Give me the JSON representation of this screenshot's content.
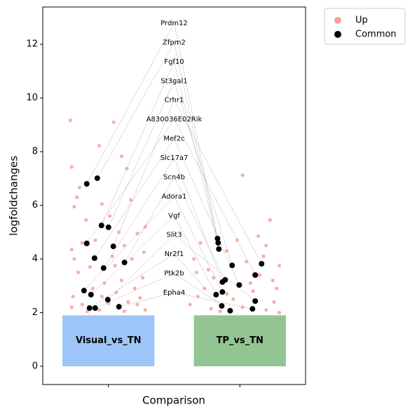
{
  "chart_data": {
    "type": "scatter",
    "xlabel": "Comparison",
    "ylabel": "logfoldchanges",
    "categories": [
      "Visual_vs_TN",
      "TP_vs_TN"
    ],
    "category_bars": {
      "values": [
        1.9,
        1.9
      ],
      "colors": [
        "#9ec5f7",
        "#93c592"
      ]
    },
    "xlim": [
      -0.5,
      1.5
    ],
    "xticks": [
      0,
      1
    ],
    "ylim": [
      -0.68,
      13.39
    ],
    "yticks": [
      0,
      2,
      4,
      6,
      8,
      10,
      12
    ],
    "genes": [
      "Prdm12",
      "Zfpm2",
      "Fgf10",
      "St3gal1",
      "Crhr1",
      "A830036E02Rik",
      "Mef2c",
      "Slc17a7",
      "Scn4b",
      "Adora1",
      "Vgf",
      "Slit3",
      "Nr2f1",
      "Ptk2b",
      "Epha4"
    ],
    "legend": "upper right outside",
    "series": [
      {
        "name": "Up",
        "color": "#f4a398",
        "x": [
          -0.29,
          0.04,
          -0.07,
          -0.28,
          0.14,
          0.1,
          -0.22,
          -0.24,
          -0.26,
          0.17,
          -0.05,
          0.01,
          0.28,
          -0.17,
          0.08,
          0.22,
          -0.28,
          -0.2,
          0.27,
          -0.1,
          0.12,
          -0.26,
          0.03,
          0.18,
          -0.14,
          0.05,
          0.26,
          -0.23,
          0.1,
          -0.03,
          0.2,
          -0.27,
          -0.12,
          0.06,
          0.24,
          -0.2,
          0.0,
          0.15,
          -0.07,
          0.28,
          -0.28,
          0.12,
          -0.16,
          0.22,
          -0.05,
          1.02,
          1.23,
          1.14,
          1.2,
          0.9,
          0.7,
          1.3,
          1.25,
          0.65,
          0.76,
          1.05,
          0.98,
          1.28,
          0.73,
          0.8,
          1.1,
          0.95,
          0.62,
          1.2,
          0.85,
          1.02,
          1.3,
          0.68,
          1.15,
          0.9,
          1.26,
          0.78,
          1.08,
          0.67,
          1.18
        ],
        "values": [
          9.17,
          9.1,
          8.22,
          7.43,
          7.37,
          7.83,
          6.66,
          6.3,
          5.95,
          6.2,
          6.05,
          5.6,
          5.2,
          5.45,
          5.0,
          4.95,
          4.35,
          4.6,
          4.25,
          4.7,
          4.5,
          4.0,
          4.1,
          4.0,
          3.7,
          3.75,
          3.3,
          3.5,
          3.2,
          3.1,
          2.9,
          2.6,
          2.9,
          2.75,
          2.55,
          2.3,
          2.35,
          2.4,
          2.1,
          2.1,
          2.2,
          2.05,
          2.05,
          2.3,
          2.6,
          7.12,
          5.45,
          4.85,
          4.5,
          4.3,
          4.6,
          3.75,
          3.2,
          4.0,
          3.6,
          3.9,
          4.7,
          2.9,
          2.9,
          3.3,
          2.8,
          2.5,
          2.3,
          2.1,
          2.05,
          2.2,
          2.0,
          2.6,
          3.4,
          2.7,
          2.4,
          2.15,
          3.1,
          3.5,
          4.1
        ]
      },
      {
        "name": "Common",
        "color": "#000000",
        "x": [
          -0.165,
          -0.085,
          -0.053,
          0.0,
          0.037,
          -0.165,
          -0.106,
          -0.037,
          0.122,
          -0.186,
          -0.133,
          -0.005,
          -0.144,
          -0.101,
          0.08,
          0.83,
          0.835,
          0.84,
          0.941,
          1.165,
          1.117,
          0.995,
          0.867,
          0.888,
          0.867,
          0.819,
          1.117,
          0.862,
          0.926,
          1.096
        ],
        "values": [
          6.8,
          7.01,
          5.25,
          5.18,
          4.47,
          4.58,
          4.03,
          3.66,
          3.87,
          2.82,
          2.67,
          2.48,
          2.17,
          2.17,
          2.22,
          4.76,
          4.6,
          4.37,
          3.76,
          3.82,
          3.4,
          3.03,
          3.14,
          3.22,
          2.77,
          2.67,
          2.43,
          2.25,
          2.07,
          2.14
        ]
      }
    ]
  }
}
